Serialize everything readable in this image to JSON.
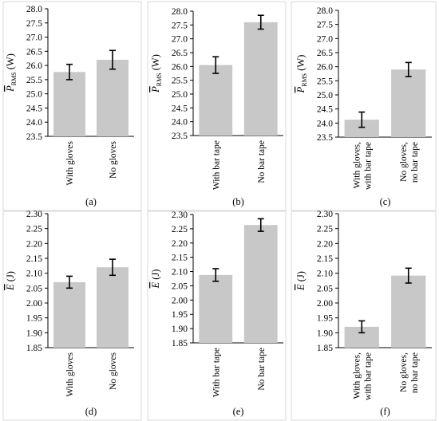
{
  "colors": {
    "bar": "#c8c8c8",
    "error_bar": "#000000",
    "axis": "#000000",
    "frame": "#d9d9d9"
  },
  "chart_data": [
    {
      "type": "bar",
      "panel": "(a)",
      "ylabel": {
        "symbol": "P",
        "sub": "RMS",
        "unit": "(W)"
      },
      "ylim": [
        23.5,
        28.0
      ],
      "ticks": [
        "23.5",
        "24.0",
        "24.5",
        "25.0",
        "25.5",
        "26.0",
        "26.5",
        "27.0",
        "27.5",
        "28.0"
      ],
      "categories": [
        [
          "With gloves"
        ],
        [
          "No gloves"
        ]
      ],
      "values": [
        25.77,
        26.2
      ],
      "errors": [
        0.27,
        0.33
      ]
    },
    {
      "type": "bar",
      "panel": "(b)",
      "ylabel": {
        "symbol": "P",
        "sub": "RMS",
        "unit": "(W)"
      },
      "ylim": [
        23.5,
        28.0
      ],
      "ticks": [
        "23.5",
        "24.0",
        "24.5",
        "25.0",
        "25.5",
        "26.0",
        "26.5",
        "27.0",
        "27.5",
        "28.0"
      ],
      "categories": [
        [
          "With bar tape"
        ],
        [
          "No bar tape"
        ]
      ],
      "values": [
        26.05,
        27.6
      ],
      "errors": [
        0.3,
        0.25
      ]
    },
    {
      "type": "bar",
      "panel": "(c)",
      "ylabel": {
        "symbol": "P",
        "sub": "RMS",
        "unit": "(W)"
      },
      "ylim": [
        23.5,
        28.0
      ],
      "ticks": [
        "23.5",
        "24.0",
        "24.5",
        "25.0",
        "25.5",
        "26.0",
        "26.5",
        "27.0",
        "27.5",
        "28.0"
      ],
      "categories": [
        [
          "With gloves,",
          "with bar tape"
        ],
        [
          "No gloves,",
          "no bar tape"
        ]
      ],
      "values": [
        24.12,
        25.9
      ],
      "errors": [
        0.27,
        0.25
      ]
    },
    {
      "type": "bar",
      "panel": "(d)",
      "ylabel": {
        "symbol": "E",
        "sub": "",
        "unit": "(J)"
      },
      "ylim": [
        1.85,
        2.3
      ],
      "ticks": [
        "1.85",
        "1.90",
        "1.95",
        "2.00",
        "2.05",
        "2.10",
        "2.15",
        "2.20",
        "2.25",
        "2.30"
      ],
      "categories": [
        [
          "With gloves"
        ],
        [
          "No gloves"
        ]
      ],
      "values": [
        2.07,
        2.12
      ],
      "errors": [
        0.02,
        0.027
      ]
    },
    {
      "type": "bar",
      "panel": "(e)",
      "ylabel": {
        "symbol": "E",
        "sub": "",
        "unit": "(J)"
      },
      "ylim": [
        1.85,
        2.3
      ],
      "ticks": [
        "1.85",
        "1.90",
        "1.95",
        "2.00",
        "2.05",
        "2.10",
        "2.15",
        "2.20",
        "2.25",
        "2.30"
      ],
      "categories": [
        [
          "With bar tape"
        ],
        [
          "No bar tape"
        ]
      ],
      "values": [
        2.088,
        2.263
      ],
      "errors": [
        0.022,
        0.022
      ]
    },
    {
      "type": "bar",
      "panel": "(f)",
      "ylabel": {
        "symbol": "E",
        "sub": "",
        "unit": "(J)"
      },
      "ylim": [
        1.85,
        2.3
      ],
      "ticks": [
        "1.85",
        "1.90",
        "1.95",
        "2.00",
        "2.05",
        "2.10",
        "2.15",
        "2.20",
        "2.25",
        "2.30"
      ],
      "categories": [
        [
          "With gloves,",
          "with bar tape"
        ],
        [
          "No gloves,",
          "no bar tape"
        ]
      ],
      "values": [
        1.92,
        2.092
      ],
      "errors": [
        0.02,
        0.025
      ]
    }
  ]
}
